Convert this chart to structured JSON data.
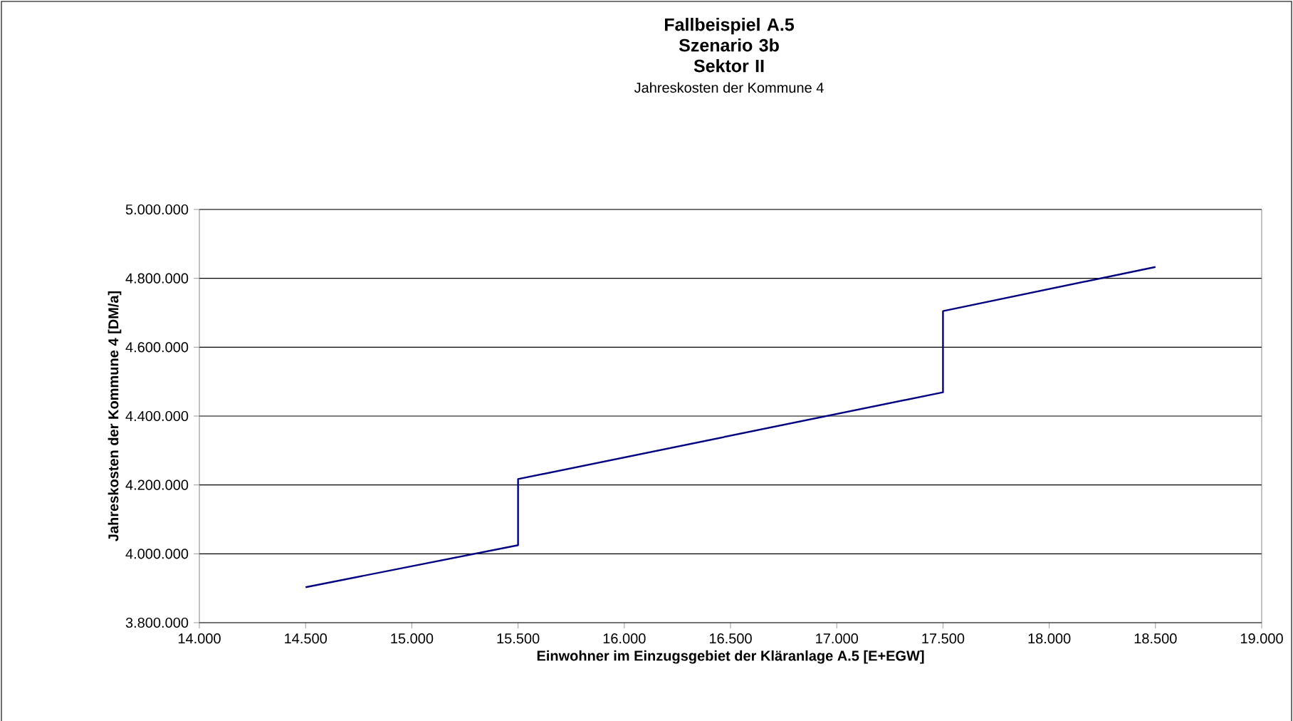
{
  "chart_data": {
    "type": "line",
    "title": "Fallbeispiel A.5 Szenario 3b Sektor II",
    "subtitle": "Jahreskosten der Kommune 4",
    "xlabel": "Einwohner im Einzugsgebiet der Kläranlage A.5 [E+EGW]",
    "ylabel": "Jahreskosten der Kommune 4 [DM/a]",
    "series": [
      {
        "color": "#000080",
        "x": [
          14500,
          15500,
          15500,
          17500,
          17500,
          18500
        ],
        "values": [
          3903000,
          4025000,
          4217000,
          4469000,
          4705000,
          4833000
        ]
      }
    ],
    "xlim": [
      14000,
      19000
    ],
    "xticks": [
      {
        "value": 14000,
        "label": "14.000"
      },
      {
        "value": 14500,
        "label": "14.500"
      },
      {
        "value": 15000,
        "label": "15.000"
      },
      {
        "value": 15500,
        "label": "15.500"
      },
      {
        "value": 16000,
        "label": "16.000"
      },
      {
        "value": 16500,
        "label": "16.500"
      },
      {
        "value": 17000,
        "label": "17.000"
      },
      {
        "value": 17500,
        "label": "17.500"
      },
      {
        "value": 18000,
        "label": "18.000"
      },
      {
        "value": 18500,
        "label": "18.500"
      },
      {
        "value": 19000,
        "label": "19.000"
      }
    ],
    "ylim": [
      3800000,
      5000000
    ],
    "yticks": [
      {
        "value": 3800000,
        "label": "3.800.000"
      },
      {
        "value": 4000000,
        "label": "4.000.000"
      },
      {
        "value": 4200000,
        "label": "4.200.000"
      },
      {
        "value": 4400000,
        "label": "4.400.000"
      },
      {
        "value": 4600000,
        "label": "4.600.000"
      },
      {
        "value": 4800000,
        "label": "4.800.000"
      },
      {
        "value": 5000000,
        "label": "5.000.000"
      }
    ],
    "grid": "y",
    "marker": "none",
    "line_style": "solid"
  }
}
